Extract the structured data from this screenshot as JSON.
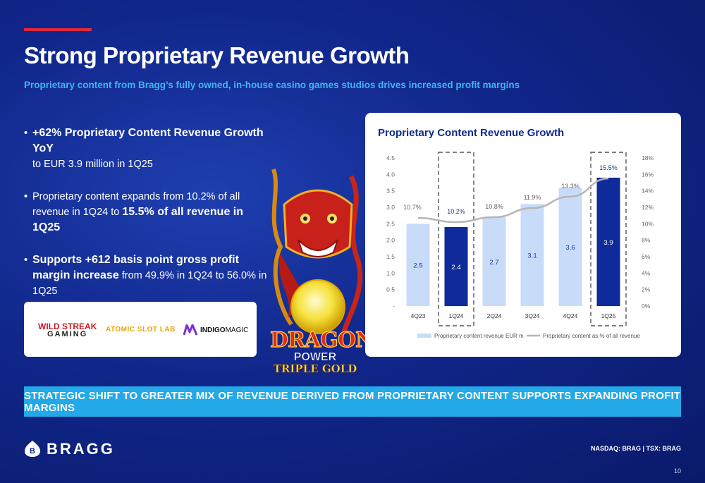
{
  "header": {
    "title": "Strong Proprietary Revenue Growth",
    "subtitle": "Proprietary content from Bragg’s fully owned, in-house casino games studios drives increased profit margins"
  },
  "bullets": [
    {
      "strong": "+62% Proprietary Content Revenue Growth YoY",
      "rest": "to EUR 3.9 million in 1Q25"
    },
    {
      "pre": "Proprietary content expands from 10.2% of all revenue in 1Q24 to ",
      "strong": "15.5% of all revenue in 1Q25"
    },
    {
      "strong": "Supports +612 basis point gross profit margin increase",
      "rest": " from 49.9% in 1Q24 to 56.0% in 1Q25"
    }
  ],
  "studios": {
    "wild_line1": "WILD STREAK",
    "wild_line2": "GAMING",
    "atomic": "ATOMIC SLOT LAB",
    "indigo_bold": "INDIGO",
    "indigo_rest": "MAGIC"
  },
  "game_logo": {
    "line1": "DRAGON",
    "line2": "POWER",
    "line3": "TRIPLE GOLD"
  },
  "chart_data": {
    "type": "bar",
    "title": "Proprietary Content Revenue Growth",
    "categories": [
      "4Q23",
      "1Q24",
      "2Q24",
      "3Q24",
      "4Q24",
      "1Q25"
    ],
    "series": [
      {
        "name": "Proprietary content revenue EUR m",
        "type": "bar",
        "values": [
          2.5,
          2.4,
          2.7,
          3.1,
          3.6,
          3.9
        ],
        "value_labels": [
          "2.5",
          "2.4",
          "2.7",
          "3.1",
          "3.6",
          "3.9"
        ]
      },
      {
        "name": "Proprietary content as % of all revenue",
        "type": "line",
        "axis": "right",
        "values": [
          10.7,
          10.2,
          10.8,
          11.9,
          13.3,
          15.5
        ],
        "value_labels": [
          "10.7%",
          "10.2%",
          "10.8%",
          "11.9%",
          "13.3%",
          "15.5%"
        ]
      }
    ],
    "highlighted": [
      "1Q24",
      "1Q25"
    ],
    "y_left": {
      "min": 0,
      "max": 4.5,
      "ticks": [
        "-",
        "0.5",
        "1.0",
        "1.5",
        "2.0",
        "2.5",
        "3.0",
        "3.5",
        "4.0",
        "4.5"
      ]
    },
    "y_right": {
      "min": 0,
      "max": 18,
      "ticks": [
        "0%",
        "2%",
        "4%",
        "6%",
        "8%",
        "10%",
        "12%",
        "14%",
        "16%",
        "18%"
      ]
    },
    "legend_position": "bottom",
    "colors": {
      "bar": "#c8dcfa",
      "bar_highlight": "#0f2a9a",
      "line": "#b5b5b5",
      "label": "#1a3a9a"
    }
  },
  "banner": "STRATEGIC SHIFT TO GREATER MIX OF REVENUE DERIVED FROM PROPRIETARY CONTENT SUPPORTS EXPANDING PROFIT MARGINS",
  "footer": {
    "brand": "BRAGG",
    "ticker": "NASDAQ: BRAG | TSX: BRAG",
    "page": "10"
  },
  "colors": {
    "accent": "#e0283c",
    "subtitle": "#3fb6f0",
    "banner": "#23a9e8"
  }
}
